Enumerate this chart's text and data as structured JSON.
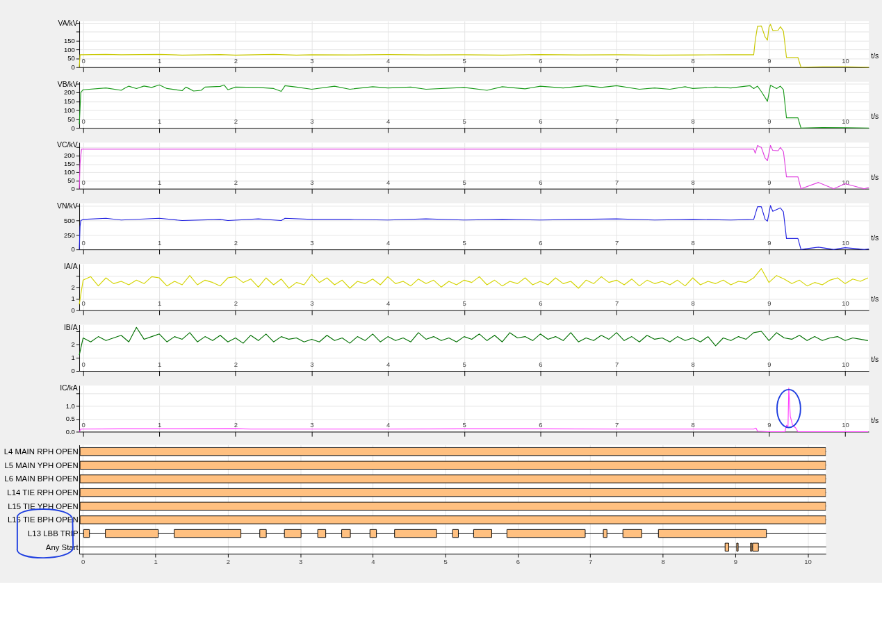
{
  "chart_data": [
    {
      "type": "line",
      "ylabel": "VA/kV",
      "xlabel": "t/s",
      "xlim": [
        -0.05,
        10.31
      ],
      "xticks": [
        0,
        1,
        2,
        3,
        4,
        5,
        6,
        7,
        8,
        9,
        10
      ],
      "ylim": [
        0,
        260
      ],
      "yticks": [
        0,
        50,
        100,
        150,
        {
          "value": 200,
          "label": null
        },
        {
          "value": 250,
          "label": null
        }
      ],
      "grid": true,
      "legend": false,
      "series": [
        {
          "color": "#c8c800",
          "x": [
            -0.05,
            -0.04,
            0.3,
            0.5,
            1.0,
            1.3,
            1.8,
            2.0,
            2.5,
            2.8,
            3.0,
            3.5,
            4.0,
            4.5,
            5.0,
            5.5,
            6.0,
            6.5,
            7.0,
            7.5,
            8.0,
            8.5,
            8.8,
            8.82,
            8.85,
            8.9,
            8.95,
            8.98,
            9.0,
            9.02,
            9.05,
            9.12,
            9.15,
            9.19,
            9.23,
            9.38,
            9.42,
            9.7,
            10.0,
            10.31
          ],
          "values": [
            0,
            70,
            72,
            70,
            72,
            68,
            71,
            68,
            72,
            68,
            70,
            69,
            71,
            69,
            70,
            68,
            71,
            69,
            70,
            68,
            69,
            70,
            70,
            150,
            230,
            232,
            170,
            152,
            225,
            241,
            207,
            208,
            228,
            203,
            55,
            55,
            0,
            3,
            3,
            0
          ]
        }
      ]
    },
    {
      "type": "line",
      "ylabel": "VB/kV",
      "xlabel": "t/s",
      "xlim": [
        -0.05,
        10.31
      ],
      "xticks": [
        0,
        1,
        2,
        3,
        4,
        5,
        6,
        7,
        8,
        9,
        10
      ],
      "ylim": [
        0,
        260
      ],
      "yticks": [
        0,
        50,
        100,
        150,
        200,
        {
          "value": 250,
          "label": null
        }
      ],
      "grid": true,
      "legend": false,
      "series": [
        {
          "color": "#1a9a1a",
          "x": [
            -0.05,
            -0.03,
            0.0,
            0.3,
            0.5,
            0.55,
            0.6,
            0.7,
            0.8,
            0.9,
            1.0,
            1.1,
            1.3,
            1.35,
            1.45,
            1.55,
            1.6,
            1.8,
            1.85,
            1.9,
            2.0,
            2.3,
            2.5,
            2.6,
            2.65,
            2.8,
            3.0,
            3.3,
            3.5,
            3.8,
            4.0,
            4.3,
            4.5,
            5.0,
            5.3,
            5.5,
            5.8,
            6.0,
            6.3,
            6.6,
            6.8,
            7.0,
            7.3,
            7.5,
            7.7,
            7.9,
            8.0,
            8.3,
            8.5,
            8.75,
            8.8,
            8.85,
            8.9,
            8.98,
            9.02,
            9.1,
            9.15,
            9.19,
            9.23,
            9.38,
            9.42,
            9.7,
            10.0,
            10.31
          ],
          "values": [
            20,
            200,
            215,
            225,
            212,
            225,
            235,
            222,
            236,
            228,
            242,
            222,
            210,
            230,
            208,
            212,
            230,
            234,
            242,
            215,
            230,
            228,
            222,
            206,
            238,
            230,
            218,
            235,
            218,
            232,
            225,
            230,
            218,
            228,
            212,
            232,
            220,
            235,
            225,
            238,
            228,
            238,
            218,
            225,
            218,
            232,
            222,
            230,
            225,
            238,
            222,
            235,
            205,
            150,
            240,
            222,
            235,
            215,
            57,
            57,
            0,
            3,
            2,
            0
          ]
        }
      ]
    },
    {
      "type": "line",
      "ylabel": "VC/kV",
      "xlabel": "t/s",
      "xlim": [
        -0.05,
        10.31
      ],
      "xticks": [
        0,
        1,
        2,
        3,
        4,
        5,
        6,
        7,
        8,
        9,
        10
      ],
      "ylim": [
        0,
        280
      ],
      "yticks": [
        0,
        50,
        100,
        150,
        200,
        {
          "value": 250,
          "label": null
        }
      ],
      "grid": true,
      "legend": false,
      "series": [
        {
          "color": "#e040e0",
          "x": [
            -0.05,
            -0.04,
            -0.03,
            -0.02,
            8.8,
            8.82,
            8.85,
            8.9,
            8.95,
            8.98,
            9.02,
            9.05,
            9.12,
            9.15,
            9.19,
            9.23,
            9.38,
            9.42,
            9.65,
            9.85,
            10.0,
            10.25,
            10.31
          ],
          "values": [
            0,
            150,
            200,
            240,
            240,
            215,
            262,
            250,
            185,
            170,
            262,
            232,
            230,
            250,
            225,
            72,
            72,
            0,
            38,
            0,
            30,
            0,
            8
          ]
        }
      ]
    },
    {
      "type": "line",
      "ylabel": "VN/kV",
      "xlabel": "t/s",
      "xlim": [
        -0.05,
        10.31
      ],
      "xticks": [
        0,
        1,
        2,
        3,
        4,
        5,
        6,
        7,
        8,
        9,
        10
      ],
      "ylim": [
        0,
        800
      ],
      "yticks": [
        0,
        250,
        500,
        {
          "value": 750,
          "label": null
        }
      ],
      "grid": true,
      "legend": false,
      "series": [
        {
          "color": "#2020e0",
          "x": [
            -0.05,
            -0.04,
            -0.03,
            0.0,
            0.3,
            0.5,
            1.0,
            1.3,
            1.8,
            1.9,
            2.3,
            2.6,
            2.65,
            3.0,
            3.5,
            4.0,
            4.5,
            5.0,
            5.5,
            6.0,
            6.5,
            7.0,
            7.5,
            8.0,
            8.5,
            8.8,
            8.85,
            8.9,
            8.95,
            8.98,
            9.02,
            9.05,
            9.15,
            9.19,
            9.23,
            9.38,
            9.42,
            9.65,
            9.85,
            10.0,
            10.25,
            10.31
          ],
          "values": [
            0,
            400,
            500,
            520,
            540,
            510,
            540,
            500,
            520,
            500,
            530,
            500,
            540,
            520,
            520,
            510,
            530,
            510,
            520,
            510,
            520,
            530,
            510,
            520,
            510,
            520,
            740,
            740,
            520,
            490,
            760,
            660,
            720,
            650,
            190,
            190,
            0,
            40,
            0,
            30,
            0,
            10
          ]
        }
      ]
    },
    {
      "type": "line",
      "ylabel": "IA/A",
      "xlabel": "t/s",
      "xlim": [
        -0.05,
        10.31
      ],
      "xticks": [
        0,
        1,
        2,
        3,
        4,
        5,
        6,
        7,
        8,
        9,
        10
      ],
      "ylim": [
        0,
        4
      ],
      "yticks": [
        0,
        1,
        2,
        {
          "value": 3,
          "label": null
        }
      ],
      "grid": true,
      "legend": false,
      "series": [
        {
          "color": "#d4d400",
          "x": [
            -0.05,
            0,
            0.1,
            0.2,
            0.3,
            0.4,
            0.5,
            0.6,
            0.7,
            0.8,
            0.9,
            1.0,
            1.1,
            1.2,
            1.3,
            1.4,
            1.5,
            1.6,
            1.7,
            1.8,
            1.9,
            2.0,
            2.1,
            2.2,
            2.3,
            2.4,
            2.5,
            2.6,
            2.7,
            2.8,
            2.9,
            3.0,
            3.1,
            3.2,
            3.3,
            3.4,
            3.5,
            3.6,
            3.7,
            3.8,
            3.9,
            4.0,
            4.1,
            4.2,
            4.3,
            4.4,
            4.5,
            4.6,
            4.7,
            4.8,
            4.9,
            5.0,
            5.1,
            5.2,
            5.3,
            5.4,
            5.5,
            5.6,
            5.7,
            5.8,
            5.9,
            6.0,
            6.1,
            6.2,
            6.3,
            6.4,
            6.5,
            6.6,
            6.7,
            6.8,
            6.9,
            7.0,
            7.1,
            7.2,
            7.3,
            7.4,
            7.5,
            7.6,
            7.7,
            7.8,
            7.9,
            8.0,
            8.1,
            8.2,
            8.3,
            8.4,
            8.5,
            8.6,
            8.7,
            8.8,
            8.9,
            9.0,
            9.1,
            9.2,
            9.3,
            9.4,
            9.5,
            9.6,
            9.7,
            9.8,
            9.9,
            10.0,
            10.1,
            10.2,
            10.3
          ],
          "values": [
            0.5,
            2.6,
            2.9,
            2.1,
            2.8,
            2.3,
            2.5,
            2.2,
            2.6,
            2.3,
            2.9,
            2.8,
            2.1,
            2.5,
            2.2,
            3.0,
            2.2,
            2.6,
            2.4,
            2.1,
            2.8,
            2.9,
            2.4,
            2.7,
            2.0,
            2.8,
            2.2,
            2.7,
            1.9,
            2.4,
            2.2,
            3.1,
            2.4,
            2.8,
            2.2,
            2.6,
            1.9,
            2.5,
            2.3,
            2.7,
            2.2,
            2.9,
            2.3,
            2.5,
            2.1,
            2.7,
            2.3,
            2.6,
            2.0,
            2.5,
            2.2,
            2.6,
            2.4,
            2.9,
            2.2,
            2.6,
            2.1,
            2.5,
            2.3,
            2.8,
            2.2,
            2.5,
            2.2,
            2.8,
            2.3,
            2.5,
            1.9,
            2.6,
            2.3,
            2.9,
            2.4,
            2.6,
            2.2,
            2.7,
            2.1,
            2.6,
            2.3,
            2.5,
            2.2,
            2.6,
            2.1,
            2.8,
            2.2,
            2.5,
            2.3,
            2.6,
            2.2,
            2.5,
            2.4,
            2.8,
            3.6,
            2.4,
            3.0,
            2.7,
            2.3,
            2.6,
            2.1,
            2.4,
            2.2,
            2.6,
            2.8,
            2.3,
            2.7,
            2.5,
            2.8
          ]
        }
      ]
    },
    {
      "type": "line",
      "ylabel": "IB/A",
      "xlabel": "t/s",
      "xlim": [
        -0.05,
        10.31
      ],
      "xticks": [
        0,
        1,
        2,
        3,
        4,
        5,
        6,
        7,
        8,
        9,
        10
      ],
      "ylim": [
        0,
        3.5
      ],
      "yticks": [
        0,
        1,
        2,
        {
          "value": 3,
          "label": null
        }
      ],
      "grid": true,
      "legend": false,
      "series": [
        {
          "color": "#007000",
          "x": [
            -0.05,
            0,
            0.1,
            0.2,
            0.3,
            0.4,
            0.5,
            0.6,
            0.7,
            0.8,
            0.9,
            1.0,
            1.1,
            1.2,
            1.3,
            1.4,
            1.5,
            1.6,
            1.7,
            1.8,
            1.9,
            2.0,
            2.1,
            2.2,
            2.3,
            2.4,
            2.5,
            2.6,
            2.7,
            2.8,
            2.9,
            3.0,
            3.1,
            3.2,
            3.3,
            3.4,
            3.5,
            3.6,
            3.7,
            3.8,
            3.9,
            4.0,
            4.1,
            4.2,
            4.3,
            4.4,
            4.5,
            4.6,
            4.7,
            4.8,
            4.9,
            5.0,
            5.1,
            5.2,
            5.3,
            5.4,
            5.5,
            5.6,
            5.7,
            5.8,
            5.9,
            6.0,
            6.1,
            6.2,
            6.3,
            6.4,
            6.5,
            6.6,
            6.7,
            6.8,
            6.9,
            7.0,
            7.1,
            7.2,
            7.3,
            7.4,
            7.5,
            7.6,
            7.7,
            7.8,
            7.9,
            8.0,
            8.1,
            8.2,
            8.3,
            8.4,
            8.5,
            8.6,
            8.7,
            8.8,
            8.9,
            9.0,
            9.1,
            9.2,
            9.3,
            9.4,
            9.5,
            9.6,
            9.7,
            9.8,
            9.9,
            10.0,
            10.1,
            10.2,
            10.3
          ],
          "values": [
            1.2,
            2.5,
            2.2,
            2.6,
            2.3,
            2.5,
            2.7,
            2.2,
            3.3,
            2.4,
            2.6,
            2.8,
            2.2,
            2.6,
            2.4,
            2.9,
            2.2,
            2.6,
            2.3,
            2.7,
            2.2,
            2.5,
            2.1,
            2.7,
            2.3,
            2.8,
            2.2,
            2.6,
            2.4,
            2.5,
            2.2,
            2.4,
            2.2,
            2.7,
            2.3,
            2.5,
            2.1,
            2.6,
            2.3,
            2.8,
            2.2,
            2.6,
            2.3,
            2.5,
            2.2,
            2.9,
            2.4,
            2.6,
            2.3,
            2.5,
            2.2,
            2.6,
            2.4,
            2.8,
            2.3,
            2.7,
            2.2,
            2.9,
            2.5,
            2.6,
            2.3,
            2.8,
            2.4,
            2.6,
            2.3,
            2.9,
            2.2,
            2.5,
            2.3,
            2.7,
            2.4,
            2.9,
            2.3,
            2.6,
            2.2,
            2.7,
            2.4,
            2.5,
            2.2,
            2.6,
            2.3,
            2.5,
            2.2,
            2.6,
            1.9,
            2.5,
            2.3,
            2.6,
            2.4,
            2.9,
            3.0,
            2.3,
            2.9,
            2.5,
            2.4,
            2.7,
            2.3,
            2.6,
            2.3,
            2.5,
            2.6,
            2.3,
            2.5,
            2.4,
            2.3
          ]
        }
      ]
    },
    {
      "type": "line",
      "ylabel": "IC/kA",
      "xlabel": "t/s",
      "xlim": [
        -0.05,
        10.31
      ],
      "xticks": [
        0,
        1,
        2,
        3,
        4,
        5,
        6,
        7,
        8,
        9,
        10
      ],
      "ylim": [
        0,
        1.8
      ],
      "yticks": [
        {
          "value": 0,
          "label": "0.0"
        },
        {
          "value": 0.5,
          "label": "0.5"
        },
        {
          "value": 1,
          "label": "1.0"
        },
        {
          "value": 1.5,
          "label": null
        }
      ],
      "grid": true,
      "legend": false,
      "series": [
        {
          "color": "#ff40ff",
          "x": [
            -0.05,
            -0.03,
            0.5,
            1.0,
            2.0,
            2.2,
            3.0,
            4.0,
            5.0,
            6.0,
            7.0,
            8.0,
            8.8,
            8.83,
            8.85,
            9.0,
            9.21,
            9.23,
            9.25,
            9.26,
            9.28,
            9.31,
            9.35,
            9.38,
            10.3
          ],
          "values": [
            0,
            0.1,
            0.11,
            0.11,
            0.12,
            0.1,
            0.1,
            0.1,
            0.11,
            0.11,
            0.1,
            0.1,
            0.1,
            0.14,
            0.02,
            0,
            0,
            0.25,
            0.2,
            1.7,
            0.6,
            0.25,
            0.15,
            0,
            0
          ]
        }
      ]
    },
    {
      "type": "bar",
      "orientation": "horizontal",
      "xlim": [
        -0.05,
        10.25
      ],
      "xticks": [
        0,
        1,
        2,
        3,
        4,
        5,
        6,
        7,
        8,
        9,
        10
      ],
      "grid": true,
      "legend": false,
      "categories": [
        "L4 MAIN RPH OPEN",
        "L5 MAIN YPH OPEN",
        "L6 MAIN BPH OPEN",
        "L14 TIE RPH OPEN",
        "L15 TIE YPH OPEN",
        "L16 TIE BPH OPEN",
        "L13 LBB TRIP",
        "Any Start"
      ],
      "series": [
        {
          "color": "#ffc080",
          "base": [
            -0.04,
            -0.04,
            -0.04,
            -0.04,
            -0.04,
            -0.04,
            0.01,
            8.86
          ],
          "values": [
            10.29,
            10.29,
            10.29,
            10.29,
            10.29,
            10.29,
            0.08,
            0.05
          ]
        },
        {
          "color": "#ffc080",
          "base": [
            null,
            null,
            null,
            null,
            null,
            null,
            0.31,
            9.02
          ],
          "values": [
            null,
            null,
            null,
            null,
            null,
            null,
            0.73,
            0.02
          ]
        },
        {
          "color": "#ffc080",
          "base": [
            null,
            null,
            null,
            null,
            null,
            null,
            1.26,
            9.21
          ],
          "values": [
            null,
            null,
            null,
            null,
            null,
            null,
            0.92,
            0.02
          ]
        },
        {
          "color": "#ffc080",
          "base": [
            null,
            null,
            null,
            null,
            null,
            null,
            2.44,
            9.24
          ],
          "values": [
            null,
            null,
            null,
            null,
            null,
            null,
            0.09,
            0.08
          ]
        },
        {
          "color": "#ffc080",
          "base": [
            null,
            null,
            null,
            null,
            null,
            null,
            2.78,
            null
          ],
          "values": [
            null,
            null,
            null,
            null,
            null,
            null,
            0.23,
            null
          ]
        },
        {
          "color": "#ffc080",
          "base": [
            null,
            null,
            null,
            null,
            null,
            null,
            3.24,
            null
          ],
          "values": [
            null,
            null,
            null,
            null,
            null,
            null,
            0.11,
            null
          ]
        },
        {
          "color": "#ffc080",
          "base": [
            null,
            null,
            null,
            null,
            null,
            null,
            3.57,
            null
          ],
          "values": [
            null,
            null,
            null,
            null,
            null,
            null,
            0.12,
            null
          ]
        },
        {
          "color": "#ffc080",
          "base": [
            null,
            null,
            null,
            null,
            null,
            null,
            3.96,
            null
          ],
          "values": [
            null,
            null,
            null,
            null,
            null,
            null,
            0.09,
            null
          ]
        },
        {
          "color": "#ffc080",
          "base": [
            null,
            null,
            null,
            null,
            null,
            null,
            4.3,
            null
          ],
          "values": [
            null,
            null,
            null,
            null,
            null,
            null,
            0.58,
            null
          ]
        },
        {
          "color": "#ffc080",
          "base": [
            null,
            null,
            null,
            null,
            null,
            null,
            5.1,
            null
          ],
          "values": [
            null,
            null,
            null,
            null,
            null,
            null,
            0.08,
            null
          ]
        },
        {
          "color": "#ffc080",
          "base": [
            null,
            null,
            null,
            null,
            null,
            null,
            5.39,
            null
          ],
          "values": [
            null,
            null,
            null,
            null,
            null,
            null,
            0.25,
            null
          ]
        },
        {
          "color": "#ffc080",
          "base": [
            null,
            null,
            null,
            null,
            null,
            null,
            5.85,
            null
          ],
          "values": [
            null,
            null,
            null,
            null,
            null,
            null,
            1.08,
            null
          ]
        },
        {
          "color": "#ffc080",
          "base": [
            null,
            null,
            null,
            null,
            null,
            null,
            7.18,
            null
          ],
          "values": [
            null,
            null,
            null,
            null,
            null,
            null,
            0.05,
            null
          ]
        },
        {
          "color": "#ffc080",
          "base": [
            null,
            null,
            null,
            null,
            null,
            null,
            7.45,
            null
          ],
          "values": [
            null,
            null,
            null,
            null,
            null,
            null,
            0.26,
            null
          ]
        },
        {
          "color": "#ffc080",
          "base": [
            null,
            null,
            null,
            null,
            null,
            null,
            7.94,
            null
          ],
          "values": [
            null,
            null,
            null,
            null,
            null,
            null,
            1.49,
            null
          ]
        }
      ]
    }
  ]
}
